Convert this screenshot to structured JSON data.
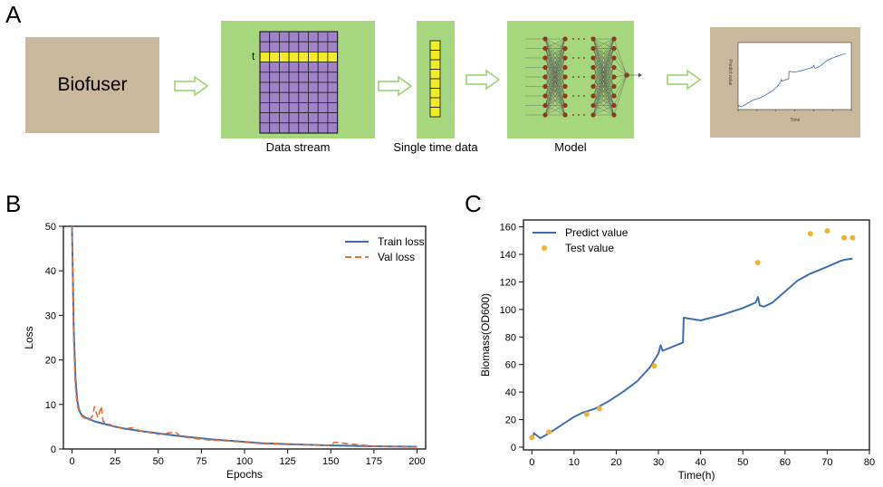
{
  "panels": {
    "a": "A",
    "b": "B",
    "c": "C"
  },
  "pipeline": {
    "source_label": "Biofuser",
    "data_stream_label": "Data stream",
    "single_time_label": "Single time data",
    "model_label": "Model",
    "row_marker": "t",
    "colors": {
      "tan": "#c9b89b",
      "green": "#a6d67d",
      "grid_purple": "#a082c8",
      "highlight": "#f3ea2a",
      "neuron": "#8b3a1d"
    }
  },
  "thumb": {
    "xlabel": "Time",
    "ylabel": "Predict value"
  },
  "chart_data": [
    {
      "id": "B",
      "type": "line",
      "xlabel": "Epochs",
      "ylabel": "Loss",
      "xlim": [
        -5,
        205
      ],
      "ylim": [
        0,
        50
      ],
      "xticks": [
        0,
        25,
        50,
        75,
        100,
        125,
        150,
        175,
        200
      ],
      "yticks": [
        0,
        10,
        20,
        30,
        40,
        50
      ],
      "legend_position": "top-right",
      "series": [
        {
          "name": "Train loss",
          "color": "#3f6eb0",
          "style": "solid",
          "x": [
            0,
            1,
            2,
            3,
            4,
            5,
            6,
            8,
            10,
            13,
            17,
            20,
            25,
            30,
            40,
            50,
            60,
            70,
            80,
            90,
            100,
            110,
            125,
            150,
            175,
            200
          ],
          "y": [
            50,
            27,
            16,
            11,
            9,
            8,
            7.5,
            7,
            6.7,
            6.2,
            5.8,
            5.5,
            5,
            4.6,
            4,
            3.5,
            3,
            2.6,
            2.2,
            1.9,
            1.6,
            1.3,
            1.1,
            0.8,
            0.6,
            0.5
          ]
        },
        {
          "name": "Val loss",
          "color": "#e0703a",
          "style": "dashed",
          "x": [
            0,
            1,
            2,
            3,
            4,
            5,
            6,
            8,
            10,
            12,
            13,
            15,
            17,
            18,
            20,
            25,
            30,
            35,
            40,
            50,
            60,
            63,
            70,
            80,
            90,
            100,
            110,
            125,
            150,
            152,
            175,
            200
          ],
          "y": [
            50,
            24,
            14,
            10,
            8.5,
            7.8,
            7.2,
            6.8,
            6.5,
            7.5,
            9.5,
            7,
            9.6,
            6.2,
            5.8,
            5,
            4.5,
            4.8,
            4,
            3.3,
            3.8,
            2.8,
            2.4,
            2,
            1.8,
            1.5,
            1.2,
            1,
            0.8,
            1.5,
            0.6,
            0.4
          ]
        }
      ]
    },
    {
      "id": "C",
      "type": "line",
      "xlabel": "Time(h)",
      "ylabel": "Biomass(OD600)",
      "xlim": [
        -2,
        80
      ],
      "ylim": [
        -2,
        165
      ],
      "xticks": [
        0,
        10,
        20,
        30,
        40,
        50,
        60,
        70,
        80
      ],
      "yticks": [
        0,
        20,
        40,
        60,
        80,
        100,
        120,
        140,
        160
      ],
      "legend_position": "top-left",
      "series": [
        {
          "name": "Predict value",
          "color": "#3f6eb0",
          "style": "solid",
          "x": [
            0,
            0.5,
            2,
            4,
            6,
            8,
            10,
            12,
            15,
            18,
            20,
            22,
            25,
            28,
            29,
            30,
            30.5,
            31,
            35.8,
            36,
            38,
            40,
            45,
            50,
            53,
            53.6,
            54,
            55,
            57,
            60,
            63,
            66,
            70,
            73,
            74,
            76
          ],
          "y": [
            6,
            10,
            6.5,
            10,
            14,
            18,
            22,
            25,
            28,
            33,
            37,
            41,
            48,
            58,
            63,
            68,
            74,
            70,
            76,
            94,
            93,
            92,
            96,
            101,
            105,
            109,
            103,
            102,
            105,
            113,
            121,
            126,
            131,
            135,
            136,
            137
          ]
        },
        {
          "name": "Test value",
          "color": "#f2b134",
          "style": "points",
          "x": [
            0,
            4,
            13,
            16,
            29,
            53.5,
            66,
            70,
            74,
            76
          ],
          "y": [
            7,
            11,
            24,
            28,
            59,
            134,
            155,
            157,
            152,
            152
          ]
        }
      ]
    }
  ]
}
